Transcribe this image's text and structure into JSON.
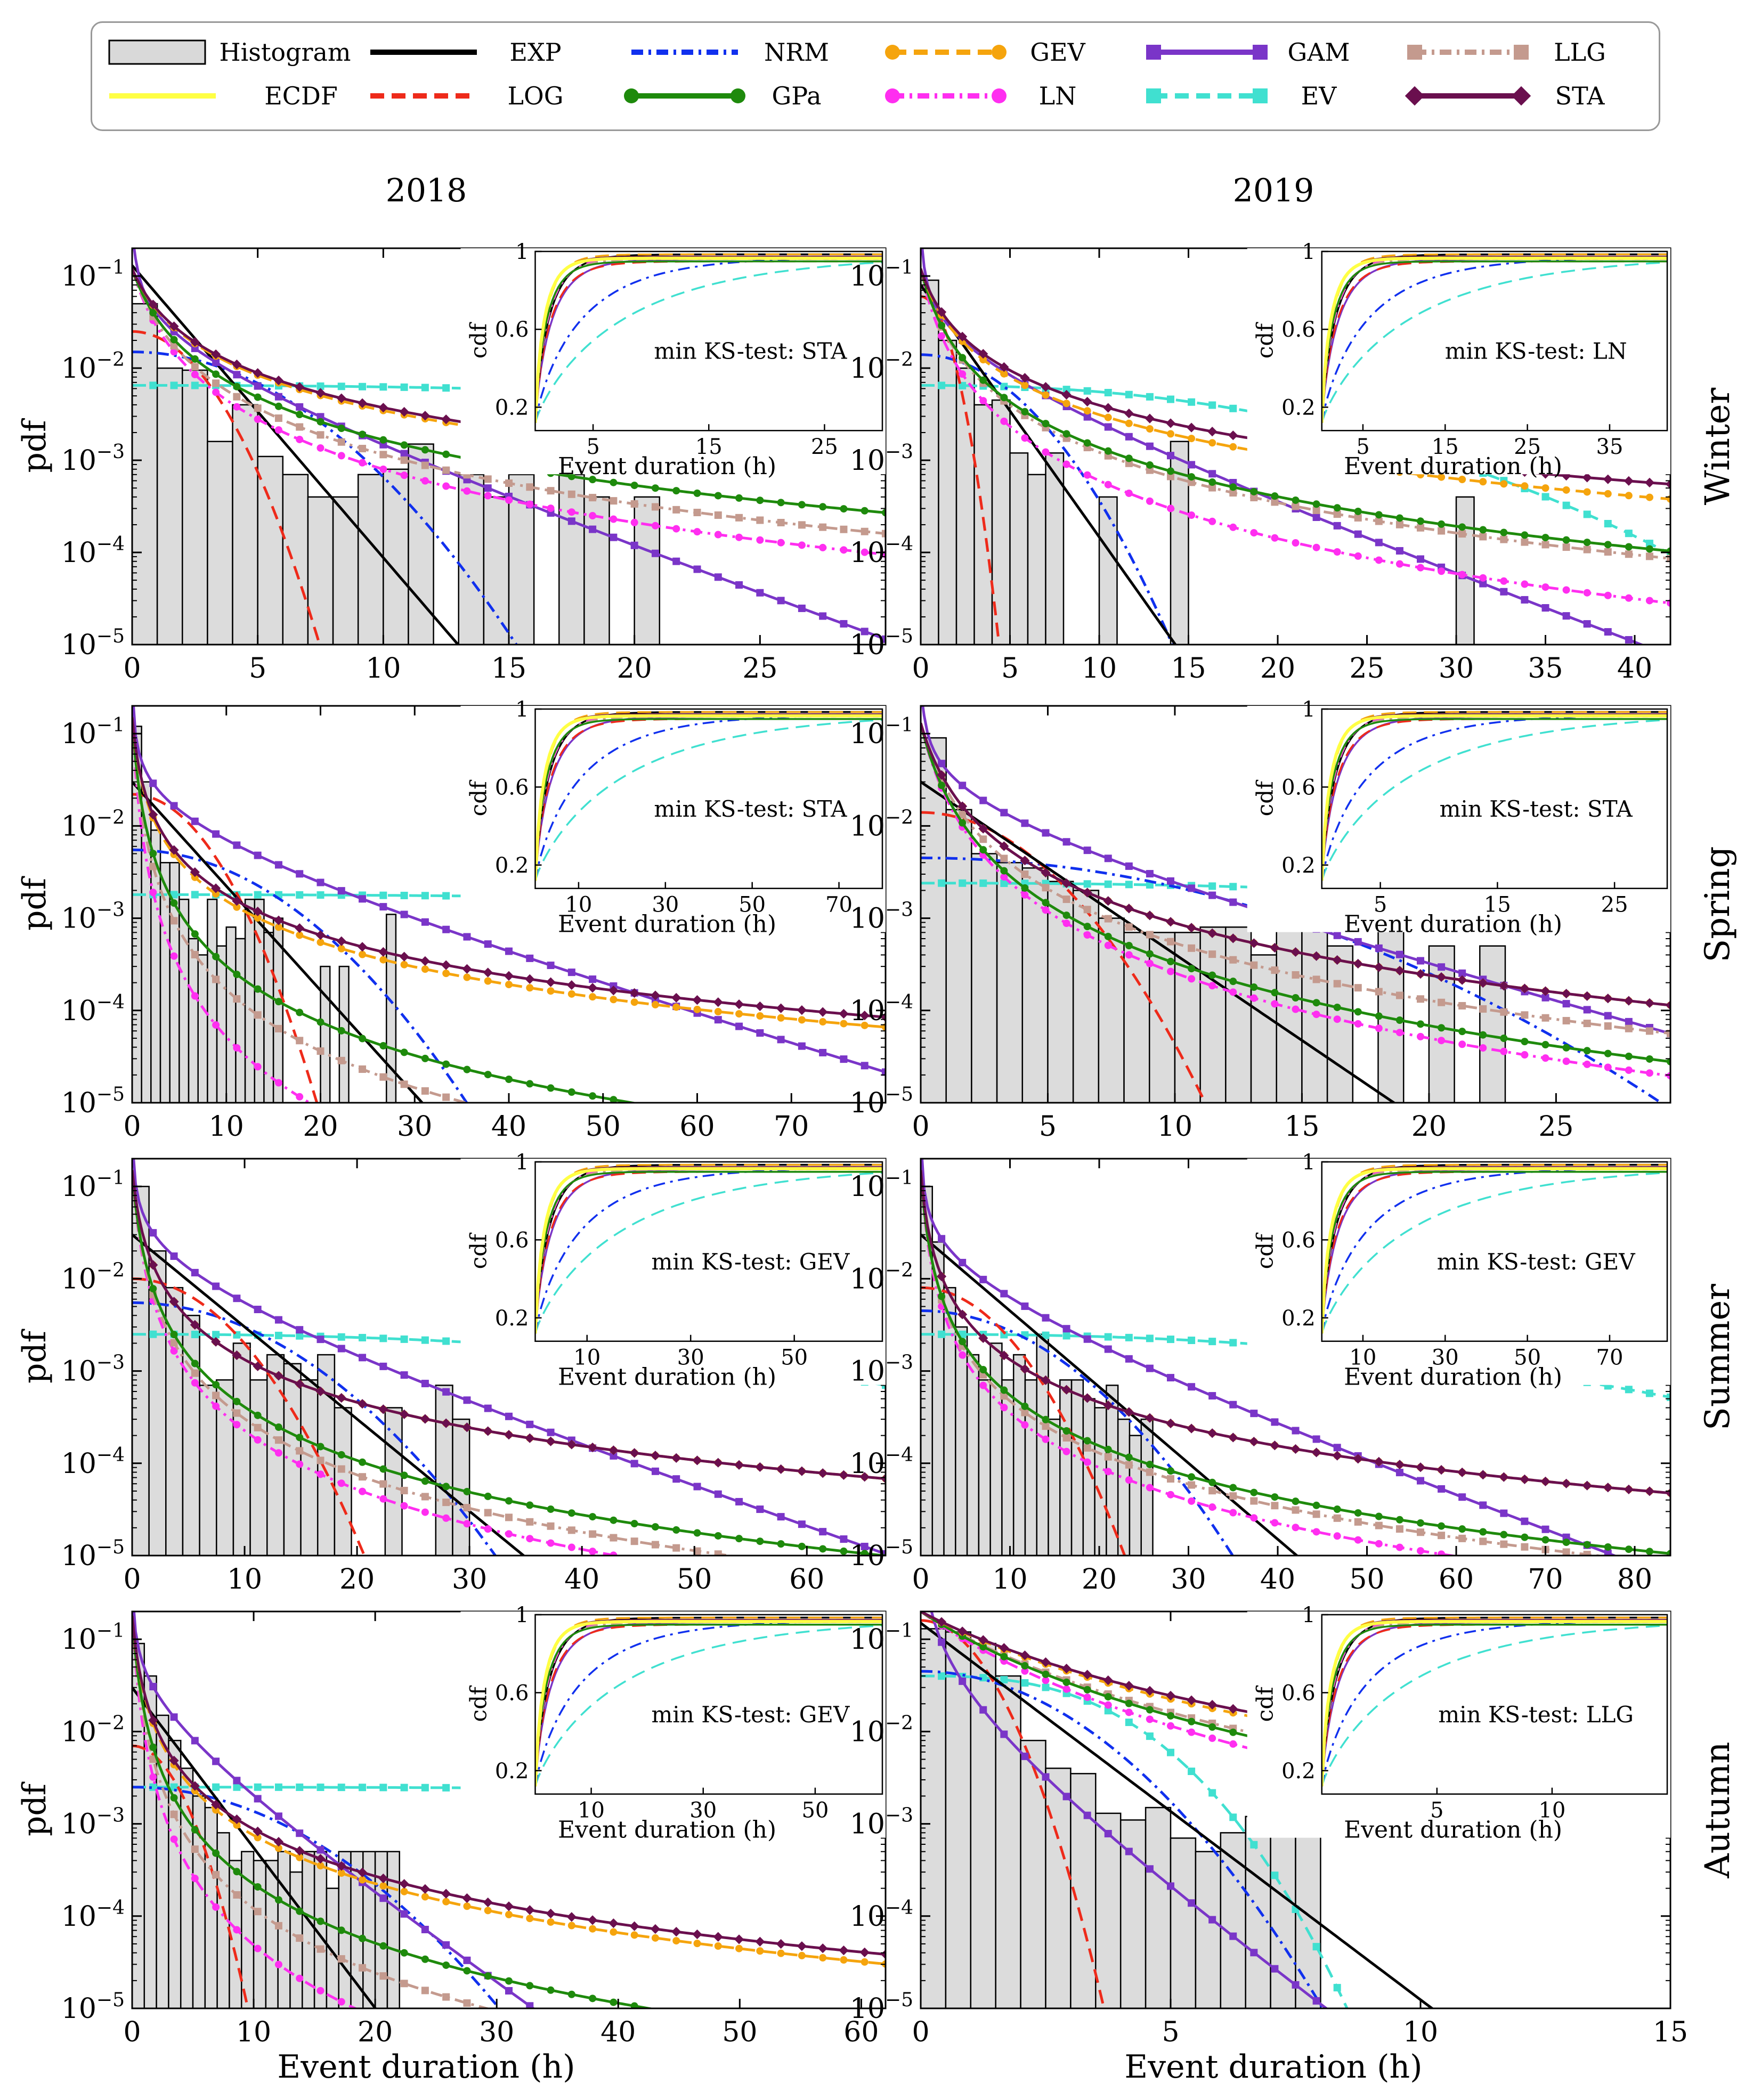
{
  "legend": {
    "entries": [
      {
        "key": "Histogram",
        "label": "Histogram",
        "color": "#d9d9d9",
        "style": "patch"
      },
      {
        "key": "ECDF",
        "label": "ECDF",
        "color": "#ffff44",
        "style": "solid"
      },
      {
        "key": "EXP",
        "label": "EXP",
        "color": "#000000",
        "style": "solid"
      },
      {
        "key": "LOG",
        "label": "LOG",
        "color": "#ee2a1a",
        "style": "dashed"
      },
      {
        "key": "NRM",
        "label": "NRM",
        "color": "#1030ee",
        "style": "dashdot"
      },
      {
        "key": "GPa",
        "label": "GPa",
        "color": "#1e8a0c",
        "style": "solid-dot"
      },
      {
        "key": "GEV",
        "label": "GEV",
        "color": "#f5a40d",
        "style": "dashed-dot"
      },
      {
        "key": "LN",
        "label": "LN",
        "color": "#ff2ef0",
        "style": "dashdot-dot"
      },
      {
        "key": "GAM",
        "label": "GAM",
        "color": "#7a35c8",
        "style": "solid-square"
      },
      {
        "key": "EV",
        "label": "EV",
        "color": "#40e0d0",
        "style": "dashed-square"
      },
      {
        "key": "LLG",
        "label": "LLG",
        "color": "#c49a8e",
        "style": "dashdot-square"
      },
      {
        "key": "STA",
        "label": "STA",
        "color": "#6a0f4e",
        "style": "solid-diamond"
      }
    ]
  },
  "columns": [
    "2018",
    "2019"
  ],
  "rows": [
    "Winter",
    "Spring",
    "Summer",
    "Autumn"
  ],
  "ylabel": "pdf",
  "xlabel": "Event duration (h)",
  "inset_ylabel": "cdf",
  "inset_xlabel": "Event duration (h)",
  "inset_yticks": [
    "0.2",
    "0.6",
    "1"
  ],
  "yticks": [
    "10^{-5}",
    "10^{-4}",
    "10^{-3}",
    "10^{-2}",
    "10^{-1}"
  ],
  "chart_data": [
    {
      "type": "line",
      "season": "Winter",
      "year": "2018",
      "scale": "log",
      "xlim": [
        0,
        30
      ],
      "ylim": [
        1e-05,
        0.2
      ],
      "xticks": [
        0,
        5,
        10,
        15,
        20,
        25
      ],
      "inset_xticks": [
        5,
        15,
        25
      ],
      "inset_xlim": [
        0,
        30
      ],
      "annotation": "min KS-test: STA",
      "histogram": {
        "bin": 1,
        "values": [
          0.05,
          0.01,
          0.0095,
          0.0016,
          0.004,
          0.0011,
          0.0007,
          0.0004,
          0.0004,
          0.0007,
          0.0008,
          0.0015,
          0.0,
          0.0007,
          0.0004,
          0.0007,
          0.0,
          0.0007,
          0.0004,
          0.0,
          0.0004
        ]
      },
      "fits": {
        "EXP": [
          0.13,
          0.73
        ],
        "LOG": [
          0.025,
          0.53
        ],
        "NRM": [
          0.015,
          0.25
        ],
        "GPa": [
          0.12,
          0.95,
          1.75
        ],
        "GEV": [
          0.12,
          0.95,
          1.45
        ],
        "LN": [
          0.12,
          0.95,
          2.05
        ],
        "GAM": [
          0.16,
          0.6,
          0.21
        ],
        "EV": [
          0.0065,
          0.0105,
          1.1
        ],
        "LLG": [
          0.12,
          0.95,
          1.9
        ],
        "STA": [
          0.12,
          0.95,
          1.42
        ]
      }
    },
    {
      "type": "line",
      "season": "Winter",
      "year": "2019",
      "scale": "log",
      "xlim": [
        0,
        42
      ],
      "ylim": [
        1e-05,
        0.2
      ],
      "xticks": [
        0,
        5,
        10,
        15,
        20,
        25,
        30,
        35,
        40
      ],
      "inset_xticks": [
        5,
        15,
        25,
        35
      ],
      "inset_xlim": [
        0,
        42
      ],
      "annotation": "min KS-test: LN",
      "histogram": {
        "bin": 1,
        "values": [
          0.09,
          0.02,
          0.01,
          0.004,
          0.0045,
          0.0012,
          0.0007,
          0.0012,
          0.0,
          0.0,
          0.0004,
          0.0,
          0.0,
          0.0,
          0.0016,
          0.0,
          0.0,
          0.0,
          0.0,
          0.0,
          0.0,
          0.0,
          0.0,
          0.0,
          0.0,
          0.0,
          0.0,
          0.0,
          0.0,
          0.0,
          0.0004,
          0.0
        ]
      },
      "fits": {
        "EXP": [
          0.08,
          0.63
        ],
        "LOG": [
          0.06,
          0.95
        ],
        "NRM": [
          0.014,
          0.27
        ],
        "GPa": [
          0.12,
          1.05,
          1.9
        ],
        "GEV": [
          0.12,
          1.05,
          1.55
        ],
        "LN": [
          0.12,
          1.05,
          2.25
        ],
        "GAM": [
          0.16,
          0.6,
          0.155
        ],
        "EV": [
          0.0065,
          0.0195,
          1.07
        ],
        "LLG": [
          0.12,
          1.05,
          1.95
        ],
        "STA": [
          0.12,
          1.05,
          1.45
        ]
      }
    },
    {
      "type": "line",
      "season": "Spring",
      "year": "2018",
      "scale": "log",
      "xlim": [
        0,
        80
      ],
      "ylim": [
        1e-05,
        0.2
      ],
      "xticks": [
        0,
        10,
        20,
        30,
        40,
        50,
        60,
        70
      ],
      "inset_xticks": [
        10,
        30,
        50,
        70
      ],
      "inset_xlim": [
        0,
        80
      ],
      "annotation": "min KS-test: STA",
      "histogram": {
        "bin": 1,
        "values": [
          0.12,
          0.03,
          0.009,
          0.004,
          0.004,
          0.0016,
          0.0006,
          0.0004,
          0.0016,
          0.0005,
          0.0008,
          0.0006,
          0.0016,
          0.0016,
          0.0007,
          0.001,
          0.0,
          0.0,
          0.0,
          0.0,
          0.0003,
          0.0,
          0.0003,
          0.0,
          0.0,
          0.0,
          0.0,
          0.0011
        ]
      },
      "fits": {
        "EXP": [
          0.03,
          0.26
        ],
        "LOG": [
          0.022,
          0.2
        ],
        "NRM": [
          0.0055,
          0.1
        ],
        "GPa": [
          0.15,
          0.55,
          2.1
        ],
        "GEV": [
          0.15,
          0.55,
          1.55
        ],
        "LN": [
          0.15,
          0.55,
          2.7
        ],
        "GAM": [
          0.18,
          0.6,
          0.065
        ],
        "EV": [
          0.0018,
          0.0028,
          1.09
        ],
        "LLG": [
          0.15,
          0.55,
          2.3
        ],
        "STA": [
          0.15,
          0.55,
          1.5
        ]
      }
    },
    {
      "type": "line",
      "season": "Spring",
      "year": "2019",
      "scale": "log",
      "xlim": [
        0,
        29.5
      ],
      "ylim": [
        1e-05,
        0.2
      ],
      "xticks": [
        0,
        5,
        10,
        15,
        20,
        25
      ],
      "inset_xticks": [
        5,
        15,
        25
      ],
      "inset_xlim": [
        0,
        29.5
      ],
      "annotation": "min KS-test: STA",
      "histogram": {
        "bin": 1,
        "values": [
          0.09,
          0.015,
          0.005,
          0.004,
          0.0035,
          0.0025,
          0.002,
          0.001,
          0.0007,
          0.0007,
          0.0007,
          0.0008,
          0.0008,
          0.0004,
          0.0008,
          0.0008,
          0.0005,
          0.0,
          0.0009,
          0.0,
          0.0005,
          0.0,
          0.0005,
          0.0,
          0.0
        ]
      },
      "fits": {
        "EXP": [
          0.03,
          0.43
        ],
        "LOG": [
          0.014,
          0.34
        ],
        "NRM": [
          0.0045,
          0.12
        ],
        "GPa": [
          0.13,
          0.9,
          2.4
        ],
        "GEV": [
          0.13,
          0.9,
          2.0
        ],
        "LN": [
          0.13,
          0.9,
          2.5
        ],
        "GAM": [
          0.16,
          0.6,
          0.16
        ],
        "EV": [
          0.0024,
          0.0123,
          1.1
        ],
        "LLG": [
          0.13,
          0.9,
          2.2
        ],
        "STA": [
          0.13,
          0.9,
          2.0
        ]
      }
    },
    {
      "type": "line",
      "season": "Summer",
      "year": "2018",
      "scale": "log",
      "xlim": [
        0,
        67
      ],
      "ylim": [
        1e-05,
        0.2
      ],
      "xticks": [
        0,
        10,
        20,
        30,
        40,
        50,
        60
      ],
      "inset_xticks": [
        10,
        30,
        50
      ],
      "inset_xlim": [
        0,
        67
      ],
      "annotation": "min KS-test: GEV",
      "histogram": {
        "bin": 1.5,
        "values": [
          0.1,
          0.02,
          0.008,
          0.004,
          0.0007,
          0.0008,
          0.002,
          0.0008,
          0.0015,
          0.0012,
          0.0008,
          0.0015,
          0.0004,
          0.0,
          0.0,
          0.0004,
          0.0,
          0.0,
          0.0007,
          0.0003
        ]
      },
      "fits": {
        "EXP": [
          0.03,
          0.23
        ],
        "LOG": [
          0.01,
          0.18
        ],
        "NRM": [
          0.0055,
          0.11
        ],
        "GPa": [
          0.15,
          0.55,
          2.0
        ],
        "GEV": [
          0.15,
          0.55,
          1.6
        ],
        "LN": [
          0.15,
          0.55,
          2.2
        ],
        "GAM": [
          0.18,
          0.6,
          0.09
        ],
        "EV": [
          0.0025,
          0.0072,
          1.09
        ],
        "LLG": [
          0.15,
          0.55,
          2.1
        ],
        "STA": [
          0.15,
          0.55,
          1.6
        ]
      }
    },
    {
      "type": "line",
      "season": "Summer",
      "year": "2019",
      "scale": "log",
      "xlim": [
        0,
        84
      ],
      "ylim": [
        1e-05,
        0.2
      ],
      "xticks": [
        0,
        10,
        20,
        30,
        40,
        50,
        60,
        70,
        80
      ],
      "inset_xticks": [
        10,
        30,
        50,
        70
      ],
      "inset_xlim": [
        0,
        84
      ],
      "annotation": "min KS-test: GEV",
      "histogram": {
        "bin": 1.3,
        "values": [
          0.1,
          0.025,
          0.008,
          0.003,
          0.0015,
          0.0008,
          0.002,
          0.0008,
          0.0015,
          0.0008,
          0.0025,
          0.0003,
          0.0008,
          0.0008,
          0.0005,
          0.0004,
          0.0007,
          0.0003,
          0.0002,
          0.0003
        ]
      },
      "fits": {
        "EXP": [
          0.03,
          0.19
        ],
        "LOG": [
          0.008,
          0.16
        ],
        "NRM": [
          0.0045,
          0.1
        ],
        "GPa": [
          0.15,
          0.55,
          1.9
        ],
        "GEV": [
          0.15,
          0.55,
          1.6
        ],
        "LN": [
          0.15,
          0.55,
          2.05
        ],
        "GAM": [
          0.18,
          0.6,
          0.077
        ],
        "EV": [
          0.0025,
          0.0063,
          1.1
        ],
        "LLG": [
          0.15,
          0.55,
          1.95
        ],
        "STA": [
          0.15,
          0.55,
          1.6
        ]
      }
    },
    {
      "type": "line",
      "season": "Autumn",
      "year": "2018",
      "scale": "log",
      "xlim": [
        0,
        62
      ],
      "ylim": [
        1e-05,
        0.2
      ],
      "xticks": [
        0,
        10,
        20,
        30,
        40,
        50,
        60
      ],
      "inset_xticks": [
        10,
        30,
        50
      ],
      "inset_xlim": [
        0,
        62
      ],
      "annotation": "min KS-test: GEV",
      "histogram": {
        "bin": 1,
        "values": [
          0.09,
          0.04,
          0.015,
          0.008,
          0.004,
          0.002,
          0.0015,
          0.0008,
          0.0004,
          0.0005,
          0.0004,
          0.0004,
          0.0005,
          0.0003,
          0.0005,
          0.0005,
          0.0002,
          0.0005,
          0.0005,
          0.0005,
          0.0005,
          0.0005
        ]
      },
      "fits": {
        "EXP": [
          0.03,
          0.4
        ],
        "LOG": [
          0.007,
          0.38
        ],
        "NRM": [
          0.0025,
          0.11
        ],
        "GPa": [
          0.18,
          0.5,
          2.2
        ],
        "GEV": [
          0.18,
          0.5,
          1.8
        ],
        "LN": [
          0.18,
          0.5,
          2.7
        ],
        "GAM": [
          0.2,
          0.6,
          0.2
        ],
        "EV": [
          0.0025,
          0.0028,
          1.11
        ],
        "LLG": [
          0.18,
          0.5,
          2.4
        ],
        "STA": [
          0.18,
          0.5,
          1.75
        ]
      }
    },
    {
      "type": "line",
      "season": "Autumn",
      "year": "2019",
      "scale": "log",
      "xlim": [
        0,
        15
      ],
      "ylim": [
        1e-05,
        0.2
      ],
      "xticks": [
        0,
        5,
        10,
        15
      ],
      "inset_xticks": [
        5,
        10
      ],
      "inset_xlim": [
        0,
        15
      ],
      "annotation": "min KS-test: LLG",
      "histogram": {
        "bin": 0.5,
        "values": [
          0.13,
          0.12,
          0.09,
          0.04,
          0.008,
          0.004,
          0.0035,
          0.0013,
          0.0011,
          0.0015,
          0.0007,
          0.0005,
          0.0008,
          0.0012,
          0.0015,
          0.0017
        ]
      },
      "fits": {
        "EXP": [
          0.15,
          0.94
        ],
        "LOG": [
          0.16,
          1.2
        ],
        "NRM": [
          0.045,
          0.51
        ],
        "GPa": [
          0.2,
          3.8,
          3.1
        ],
        "GEV": [
          0.2,
          3.8,
          2.6
        ],
        "LN": [
          0.2,
          3.8,
          3.4
        ],
        "GAM": [
          0.2,
          0.9,
          0.84
        ],
        "EV": [
          0.04,
          0.11,
          1.55
        ],
        "LLG": [
          0.2,
          3.8,
          3.0
        ],
        "STA": [
          0.2,
          3.8,
          2.5
        ]
      }
    }
  ]
}
